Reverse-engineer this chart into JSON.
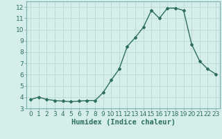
{
  "x": [
    0,
    1,
    2,
    3,
    4,
    5,
    6,
    7,
    8,
    9,
    10,
    11,
    12,
    13,
    14,
    15,
    16,
    17,
    18,
    19,
    20,
    21,
    22,
    23
  ],
  "y": [
    3.8,
    4.0,
    3.8,
    3.7,
    3.65,
    3.6,
    3.65,
    3.7,
    3.7,
    4.4,
    5.5,
    6.5,
    8.5,
    9.3,
    10.2,
    11.7,
    11.0,
    11.9,
    11.9,
    11.7,
    8.7,
    7.2,
    6.5,
    6.05
  ],
  "line_color": "#2d6e5e",
  "marker": "D",
  "marker_size": 2.0,
  "line_width": 1.0,
  "xlabel": "Humidex (Indice chaleur)",
  "xlim": [
    -0.5,
    23.5
  ],
  "ylim": [
    3,
    12.5
  ],
  "yticks": [
    3,
    4,
    5,
    6,
    7,
    8,
    9,
    10,
    11,
    12
  ],
  "xticks": [
    0,
    1,
    2,
    3,
    4,
    5,
    6,
    7,
    8,
    9,
    10,
    11,
    12,
    13,
    14,
    15,
    16,
    17,
    18,
    19,
    20,
    21,
    22,
    23
  ],
  "bg_color": "#d5eeeb",
  "grid_color": "#b8d8d4",
  "tick_label_fontsize": 6.5,
  "xlabel_fontsize": 7.5
}
